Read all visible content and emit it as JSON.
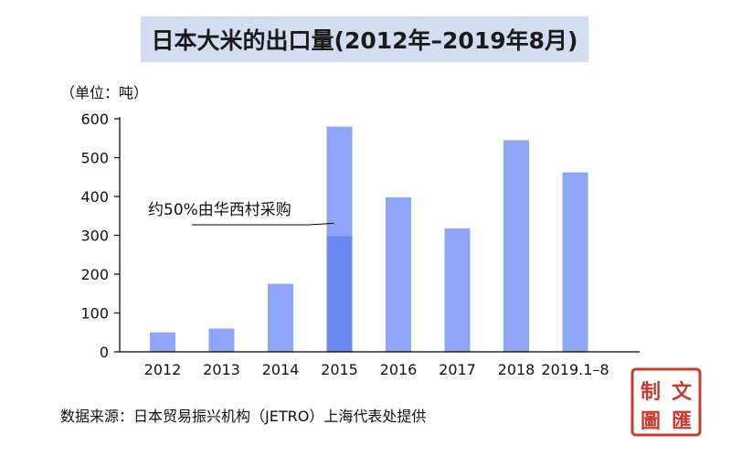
{
  "title": "日本大米的出口量(2012年–2019年8月)",
  "unit_label": "（单位：吨）",
  "source": "数据来源：日本贸易振兴机构（JETRO）上海代表处提供",
  "annotation": "约50%由华西村采购",
  "seal_chars": [
    "制",
    "文",
    "圖",
    "匯"
  ],
  "colors": {
    "bar": "#8ea6f5",
    "bar_highlight": "#6a89f2",
    "title_bg": "#d3ddf1",
    "seal": "#c83a2e"
  },
  "chart_data": {
    "type": "bar",
    "title": "日本大米的出口量(2012年–2019年8月)",
    "xlabel": "",
    "ylabel": "（单位：吨）",
    "categories": [
      "2012",
      "2013",
      "2014",
      "2015",
      "2016",
      "2017",
      "2018",
      "2019.1–8"
    ],
    "values": [
      50,
      60,
      175,
      580,
      398,
      318,
      545,
      462
    ],
    "highlight": {
      "category": "2015",
      "value": 298,
      "label": "约50%由华西村采购"
    },
    "ylim": [
      0,
      600
    ],
    "yticks": [
      0,
      100,
      200,
      300,
      400,
      500,
      600
    ],
    "grid": false,
    "legend": "none"
  }
}
